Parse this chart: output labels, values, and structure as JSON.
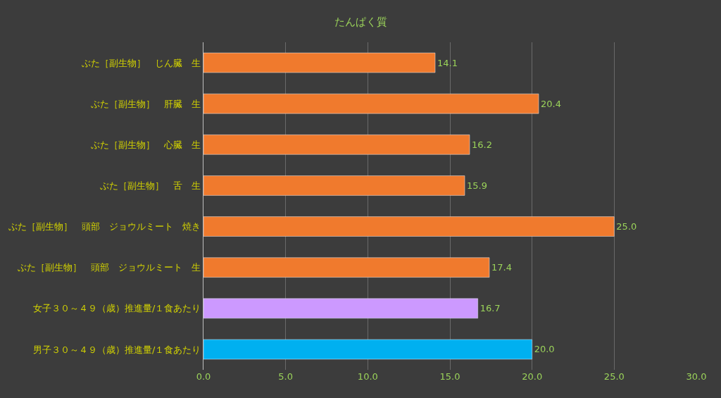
{
  "chart_data": {
    "type": "bar",
    "orientation": "horizontal",
    "title": "たんぱく質",
    "categories": [
      "ぶた［副生物］　じん臓　生",
      "ぶた［副生物］　肝臓　生",
      "ぶた［副生物］　心臓　生",
      "ぶた［副生物］　舌　生",
      "ぶた［副生物］　頭部　ジョウルミート　焼き",
      "ぶた［副生物］　頭部　ジョウルミート　生",
      "女子３０～４９（歳）推進量/１食あたり",
      "男子３０～４９（歳）推進量/１食あたり"
    ],
    "values": [
      14.1,
      20.4,
      16.2,
      15.9,
      25.0,
      17.4,
      16.7,
      20.0
    ],
    "colors": [
      "#f07a2d",
      "#f07a2d",
      "#f07a2d",
      "#f07a2d",
      "#f07a2d",
      "#f07a2d",
      "#cc99ff",
      "#00b0f0"
    ],
    "value_labels": [
      "14.1",
      "20.4",
      "16.2",
      "15.9",
      "25.0",
      "17.4",
      "16.7",
      "20.0"
    ],
    "xlim": [
      0,
      30
    ],
    "xticks": [
      {
        "value": 0,
        "label": "0.0"
      },
      {
        "value": 5,
        "label": "5.0"
      },
      {
        "value": 10,
        "label": "10.0"
      },
      {
        "value": 15,
        "label": "15.0"
      },
      {
        "value": 20,
        "label": "20.0"
      },
      {
        "value": 25,
        "label": "25.0"
      },
      {
        "value": 30,
        "label": "30.0"
      }
    ],
    "grid": "x",
    "legend": false
  }
}
